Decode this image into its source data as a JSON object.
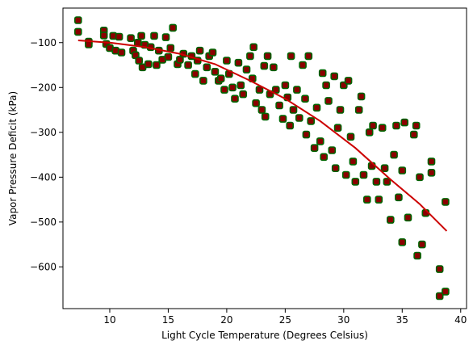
{
  "chart_data": {
    "type": "scatter",
    "title": "",
    "xlabel": "Light Cycle Temperature (Degrees Celsius)",
    "ylabel": "Vapor Pressure Deficit (kPa)",
    "xlim": [
      6.0,
      40.5
    ],
    "ylim": [
      -693,
      -23
    ],
    "xticks": [
      10,
      15,
      20,
      25,
      30,
      35,
      40
    ],
    "yticks": [
      -100,
      -200,
      -300,
      -400,
      -500,
      -600
    ],
    "marker_color": "#8b0000",
    "marker_edge_color": "#006400",
    "fit_color": "#cc0000",
    "fit_line": [
      [
        7.3,
        -95
      ],
      [
        10,
        -100
      ],
      [
        13,
        -110
      ],
      [
        16,
        -125
      ],
      [
        19,
        -148
      ],
      [
        22,
        -185
      ],
      [
        25,
        -225
      ],
      [
        28,
        -275
      ],
      [
        31,
        -335
      ],
      [
        34,
        -405
      ],
      [
        36.5,
        -460
      ],
      [
        38.8,
        -520
      ]
    ],
    "points": [
      [
        7.3,
        -50
      ],
      [
        7.3,
        -76
      ],
      [
        8.2,
        -98
      ],
      [
        8.2,
        -104
      ],
      [
        9.5,
        -73
      ],
      [
        9.5,
        -84
      ],
      [
        9.7,
        -103
      ],
      [
        10.0,
        -112
      ],
      [
        10.3,
        -85
      ],
      [
        10.5,
        -118
      ],
      [
        10.8,
        -87
      ],
      [
        11.0,
        -122
      ],
      [
        11.8,
        -90
      ],
      [
        12.0,
        -118
      ],
      [
        12.2,
        -128
      ],
      [
        12.4,
        -100
      ],
      [
        12.5,
        -140
      ],
      [
        12.7,
        -85
      ],
      [
        12.8,
        -155
      ],
      [
        13.0,
        -105
      ],
      [
        13.3,
        -148
      ],
      [
        13.5,
        -110
      ],
      [
        13.8,
        -85
      ],
      [
        14.0,
        -150
      ],
      [
        14.2,
        -118
      ],
      [
        14.5,
        -138
      ],
      [
        14.8,
        -88
      ],
      [
        15.0,
        -132
      ],
      [
        15.2,
        -112
      ],
      [
        15.4,
        -67
      ],
      [
        15.8,
        -148
      ],
      [
        16.0,
        -138
      ],
      [
        16.3,
        -125
      ],
      [
        16.7,
        -150
      ],
      [
        17.0,
        -130
      ],
      [
        17.3,
        -170
      ],
      [
        17.5,
        -140
      ],
      [
        17.7,
        -118
      ],
      [
        18.0,
        -185
      ],
      [
        18.3,
        -155
      ],
      [
        18.5,
        -130
      ],
      [
        18.8,
        -122
      ],
      [
        19.0,
        -165
      ],
      [
        19.3,
        -185
      ],
      [
        19.5,
        -180
      ],
      [
        19.8,
        -205
      ],
      [
        20.0,
        -140
      ],
      [
        20.2,
        -170
      ],
      [
        20.5,
        -200
      ],
      [
        20.7,
        -225
      ],
      [
        21.0,
        -145
      ],
      [
        21.2,
        -195
      ],
      [
        21.4,
        -215
      ],
      [
        21.7,
        -160
      ],
      [
        22.0,
        -130
      ],
      [
        22.2,
        -180
      ],
      [
        22.3,
        -110
      ],
      [
        22.5,
        -235
      ],
      [
        22.8,
        -205
      ],
      [
        23.0,
        -250
      ],
      [
        23.2,
        -152
      ],
      [
        23.3,
        -265
      ],
      [
        23.5,
        -130
      ],
      [
        23.7,
        -215
      ],
      [
        24.0,
        -155
      ],
      [
        24.2,
        -205
      ],
      [
        24.5,
        -240
      ],
      [
        24.8,
        -270
      ],
      [
        25.0,
        -195
      ],
      [
        25.2,
        -222
      ],
      [
        25.4,
        -285
      ],
      [
        25.5,
        -130
      ],
      [
        25.7,
        -250
      ],
      [
        26.0,
        -205
      ],
      [
        26.2,
        -268
      ],
      [
        26.5,
        -150
      ],
      [
        26.7,
        -225
      ],
      [
        26.8,
        -305
      ],
      [
        27.0,
        -130
      ],
      [
        27.2,
        -275
      ],
      [
        27.5,
        -335
      ],
      [
        27.7,
        -245
      ],
      [
        28.0,
        -320
      ],
      [
        28.2,
        -168
      ],
      [
        28.3,
        -355
      ],
      [
        28.5,
        -195
      ],
      [
        28.7,
        -230
      ],
      [
        29.0,
        -340
      ],
      [
        29.2,
        -175
      ],
      [
        29.3,
        -380
      ],
      [
        29.5,
        -290
      ],
      [
        29.7,
        -250
      ],
      [
        30.0,
        -195
      ],
      [
        30.2,
        -395
      ],
      [
        30.4,
        -185
      ],
      [
        30.6,
        -310
      ],
      [
        30.8,
        -365
      ],
      [
        31.0,
        -410
      ],
      [
        31.3,
        -250
      ],
      [
        31.5,
        -220
      ],
      [
        31.7,
        -395
      ],
      [
        32.0,
        -450
      ],
      [
        32.2,
        -300
      ],
      [
        32.4,
        -375
      ],
      [
        32.5,
        -285
      ],
      [
        32.8,
        -410
      ],
      [
        33.0,
        -450
      ],
      [
        33.3,
        -290
      ],
      [
        33.5,
        -380
      ],
      [
        33.7,
        -410
      ],
      [
        34.0,
        -495
      ],
      [
        34.3,
        -350
      ],
      [
        34.5,
        -285
      ],
      [
        34.7,
        -445
      ],
      [
        35.0,
        -545
      ],
      [
        35.0,
        -385
      ],
      [
        35.2,
        -278
      ],
      [
        35.5,
        -490
      ],
      [
        36.0,
        -305
      ],
      [
        36.2,
        -285
      ],
      [
        36.3,
        -575
      ],
      [
        36.5,
        -400
      ],
      [
        36.7,
        -550
      ],
      [
        37.0,
        -480
      ],
      [
        37.5,
        -390
      ],
      [
        37.5,
        -365
      ],
      [
        38.2,
        -605
      ],
      [
        38.2,
        -665
      ],
      [
        38.7,
        -455
      ],
      [
        38.7,
        -655
      ]
    ]
  }
}
